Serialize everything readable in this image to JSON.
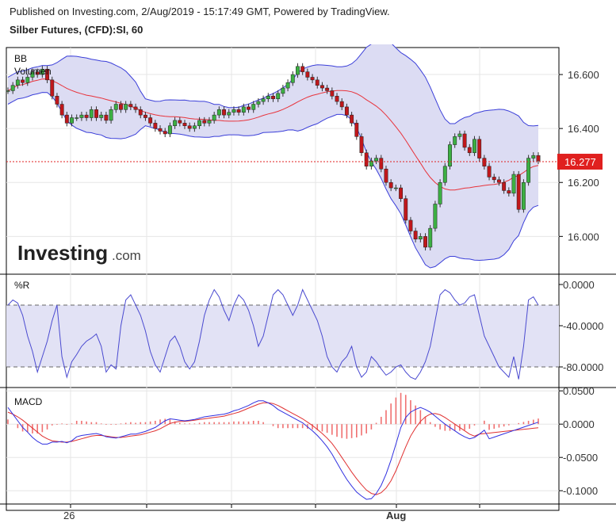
{
  "header": {
    "published_line": "Published on Investing.com, 2/Aug/2019 - 15:17:49 GMT, Powered by TradingView.",
    "instrument": "Silber Futures, (CFD):SI, 60"
  },
  "colors": {
    "up_candle": "#3cb043",
    "down_candle": "#c0171b",
    "band_line": "#3b3fd9",
    "band_fill": "#dcdcf3",
    "mid_band": "#e8333b",
    "price_line": "#e02020",
    "wr_line": "#4a4ad0",
    "macd_line": "#3030e0",
    "signal_line": "#e03030",
    "hist_up": "#f07070",
    "hist_down": "#f07070"
  },
  "chart_data": [
    {
      "type": "candlestick",
      "panel": "price",
      "labels": [
        "BB",
        "Volumen"
      ],
      "ylim": [
        15.86,
        16.7
      ],
      "yticks": [
        "16.600",
        "16.400",
        "16.200",
        "16.000"
      ],
      "last_price": 16.277,
      "last_price_label": "16.277",
      "watermark": "Investing.com",
      "close": [
        16.54,
        16.56,
        16.58,
        16.57,
        16.59,
        16.61,
        16.6,
        16.62,
        16.58,
        16.52,
        16.49,
        16.45,
        16.42,
        16.44,
        16.44,
        16.45,
        16.44,
        16.47,
        16.44,
        16.45,
        16.43,
        16.47,
        16.49,
        16.47,
        16.49,
        16.48,
        16.47,
        16.45,
        16.44,
        16.42,
        16.4,
        16.39,
        16.38,
        16.41,
        16.43,
        16.42,
        16.41,
        16.4,
        16.41,
        16.43,
        16.42,
        16.43,
        16.45,
        16.47,
        16.45,
        16.46,
        16.47,
        16.46,
        16.48,
        16.47,
        16.49,
        16.5,
        16.51,
        16.52,
        16.51,
        16.53,
        16.55,
        16.57,
        16.6,
        16.63,
        16.61,
        16.59,
        16.58,
        16.56,
        16.55,
        16.54,
        16.52,
        16.5,
        16.48,
        16.45,
        16.42,
        16.37,
        16.31,
        16.26,
        16.28,
        16.29,
        16.25,
        16.2,
        16.18,
        16.18,
        16.14,
        16.06,
        16.02,
        15.99,
        16.0,
        15.96,
        16.03,
        16.12,
        16.2,
        16.26,
        16.34,
        16.37,
        16.38,
        16.33,
        16.31,
        16.36,
        16.29,
        16.26,
        16.22,
        16.21,
        16.2,
        16.17,
        16.16,
        16.23,
        16.1,
        16.2,
        16.29,
        16.3,
        16.28
      ]
    },
    {
      "type": "line",
      "panel": "williams_r",
      "label": "%R",
      "ylim": [
        -100,
        10
      ],
      "yticks": [
        "0.0000",
        "-40.0000",
        "-80.0000"
      ],
      "reference_lines": [
        -20,
        -80
      ],
      "values": [
        -20,
        -15,
        -18,
        -30,
        -50,
        -65,
        -85,
        -70,
        -55,
        -35,
        -20,
        -70,
        -90,
        -75,
        -68,
        -60,
        -55,
        -52,
        -48,
        -60,
        -85,
        -78,
        -82,
        -40,
        -15,
        -10,
        -20,
        -30,
        -45,
        -65,
        -78,
        -85,
        -70,
        -55,
        -50,
        -60,
        -75,
        -82,
        -75,
        -55,
        -30,
        -15,
        -5,
        -12,
        -25,
        -35,
        -20,
        -10,
        -15,
        -25,
        -40,
        -60,
        -50,
        -30,
        -10,
        -5,
        -10,
        -20,
        -30,
        -20,
        -5,
        -15,
        -25,
        -35,
        -50,
        -70,
        -80,
        -85,
        -75,
        -70,
        -60,
        -80,
        -90,
        -85,
        -70,
        -75,
        -82,
        -88,
        -85,
        -80,
        -78,
        -85,
        -90,
        -92,
        -85,
        -75,
        -60,
        -35,
        -10,
        -5,
        -8,
        -15,
        -20,
        -18,
        -12,
        -10,
        -30,
        -50,
        -60,
        -70,
        -80,
        -85,
        -90,
        -70,
        -92,
        -60,
        -15,
        -12,
        -20
      ]
    },
    {
      "type": "line",
      "panel": "macd",
      "label": "MACD",
      "ylim": [
        -0.12,
        0.055
      ],
      "yticks": [
        "0.0500",
        "0.0000",
        "-0.0500",
        "-0.1000"
      ],
      "macd": [
        0.025,
        0.015,
        0.005,
        -0.005,
        -0.012,
        -0.02,
        -0.026,
        -0.03,
        -0.03,
        -0.027,
        -0.027,
        -0.026,
        -0.028,
        -0.025,
        -0.019,
        -0.017,
        -0.016,
        -0.015,
        -0.014,
        -0.016,
        -0.019,
        -0.02,
        -0.021,
        -0.019,
        -0.017,
        -0.015,
        -0.015,
        -0.013,
        -0.011,
        -0.008,
        -0.005,
        0.0,
        0.005,
        0.008,
        0.007,
        0.006,
        0.005,
        0.006,
        0.007,
        0.009,
        0.011,
        0.012,
        0.013,
        0.014,
        0.015,
        0.017,
        0.02,
        0.022,
        0.025,
        0.028,
        0.032,
        0.035,
        0.035,
        0.032,
        0.028,
        0.022,
        0.018,
        0.014,
        0.01,
        0.006,
        0.002,
        -0.004,
        -0.01,
        -0.017,
        -0.025,
        -0.034,
        -0.045,
        -0.058,
        -0.071,
        -0.083,
        -0.093,
        -0.102,
        -0.108,
        -0.113,
        -0.112,
        -0.104,
        -0.092,
        -0.075,
        -0.054,
        -0.03,
        -0.005,
        0.01,
        0.018,
        0.022,
        0.025,
        0.022,
        0.018,
        0.012,
        0.006,
        0.0,
        -0.005,
        -0.01,
        -0.015,
        -0.019,
        -0.022,
        -0.02,
        -0.015,
        -0.009,
        -0.003,
        0.0,
        0.0,
        0.0,
        0.0,
        0.0,
        0.0,
        0.0,
        0.0,
        0.0,
        0.0
      ],
      "signal": [
        0.018,
        0.015,
        0.011,
        0.006,
        0.0,
        -0.006,
        -0.012,
        -0.018,
        -0.022,
        -0.025,
        -0.026,
        -0.027,
        -0.027,
        -0.026,
        -0.024,
        -0.022,
        -0.02,
        -0.018,
        -0.017,
        -0.017,
        -0.018,
        -0.019,
        -0.02,
        -0.02,
        -0.019,
        -0.018,
        -0.017,
        -0.016,
        -0.014,
        -0.012,
        -0.01,
        -0.007,
        -0.003,
        0.001,
        0.003,
        0.004,
        0.004,
        0.005,
        0.006,
        0.007,
        0.008,
        0.009,
        0.01,
        0.011,
        0.012,
        0.014,
        0.016,
        0.018,
        0.021,
        0.024,
        0.027,
        0.03,
        0.032,
        0.032,
        0.031,
        0.028,
        0.024,
        0.02,
        0.016,
        0.012,
        0.008,
        0.003,
        -0.002,
        -0.008,
        -0.014,
        -0.021,
        -0.029,
        -0.039,
        -0.05,
        -0.061,
        -0.072,
        -0.082,
        -0.091,
        -0.099,
        -0.104,
        -0.106,
        -0.103,
        -0.096,
        -0.085,
        -0.07,
        -0.052,
        -0.034,
        -0.018,
        -0.006,
        0.004,
        0.011,
        0.015,
        0.016,
        0.014,
        0.01,
        0.005,
        0.0,
        -0.005,
        -0.01,
        -0.015,
        -0.018,
        -0.018,
        -0.015,
        -0.012,
        -0.009,
        -0.007,
        -0.005,
        -0.004,
        -0.003,
        -0.002,
        -0.001,
        0.0,
        0.0,
        0.0
      ]
    }
  ],
  "x_axis": {
    "tick_labels": [
      "26",
      "Aug"
    ]
  }
}
